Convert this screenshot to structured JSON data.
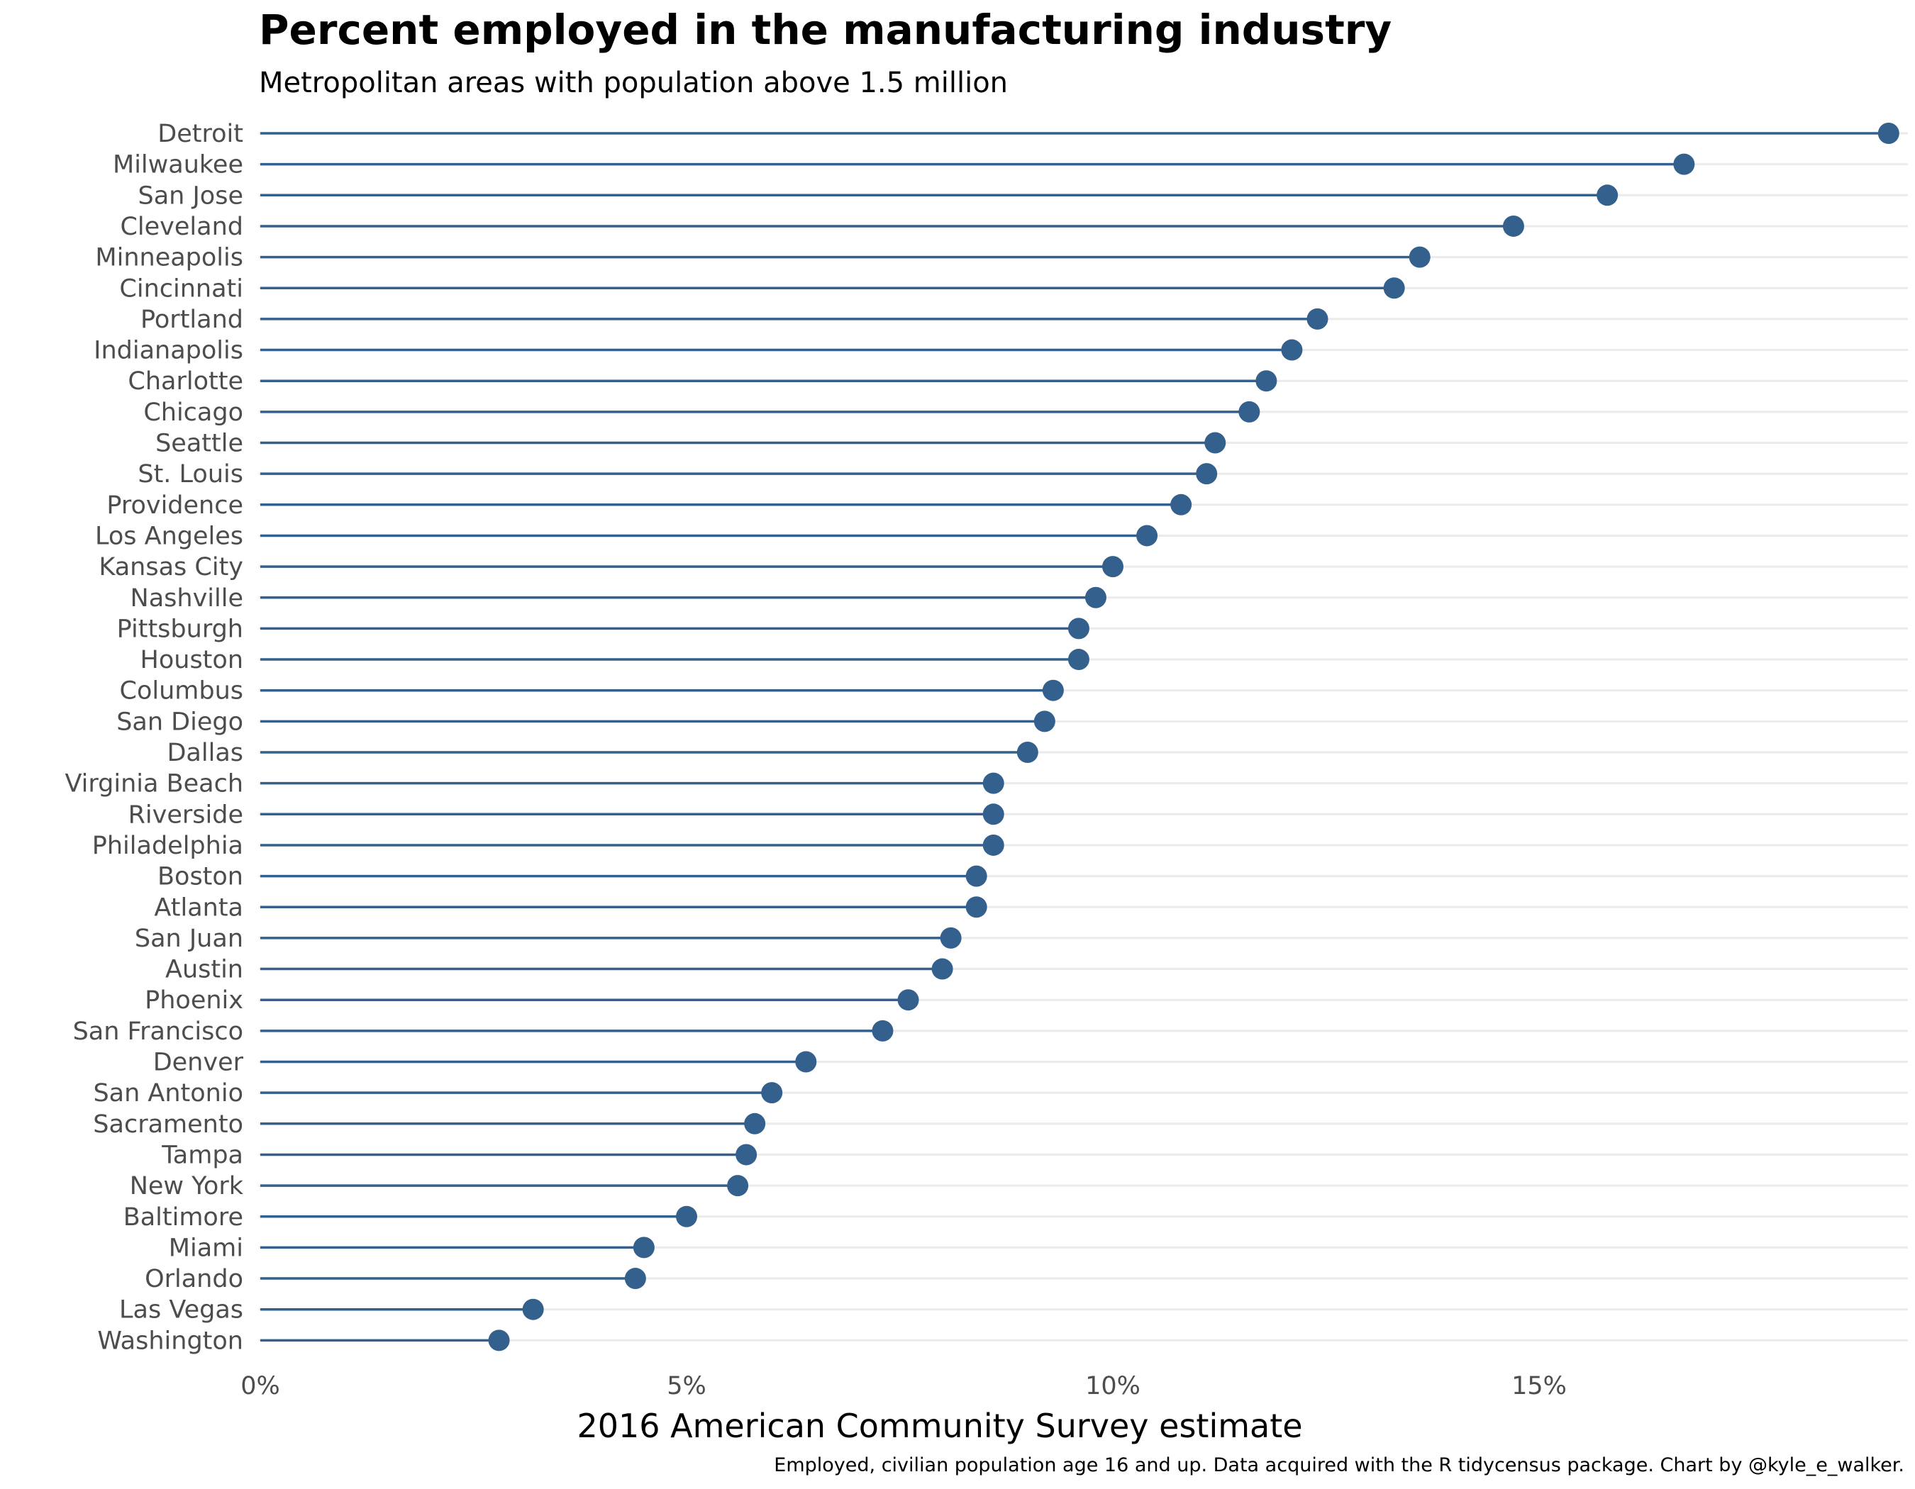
{
  "chart_data": {
    "type": "lollipop",
    "title": "Percent employed in the manufacturing industry",
    "subtitle": "Metropolitan areas with population above 1.5 million",
    "xlabel": "2016 American Community Survey estimate",
    "ylabel": "",
    "caption": "Employed, civilian population age 16 and up. Data acquired with the R tidycensus package. Chart by @kyle_e_walker.",
    "xlim": [
      0,
      19.5
    ],
    "xticks": [
      0,
      5,
      10,
      15
    ],
    "xtick_labels": [
      "0%",
      "5%",
      "10%",
      "15%"
    ],
    "grid": "horizontal",
    "categories": [
      "Detroit",
      "Milwaukee",
      "San Jose",
      "Cleveland",
      "Minneapolis",
      "Cincinnati",
      "Portland",
      "Indianapolis",
      "Charlotte",
      "Chicago",
      "Seattle",
      "St. Louis",
      "Providence",
      "Los Angeles",
      "Kansas City",
      "Nashville",
      "Pittsburgh",
      "Houston",
      "Columbus",
      "San Diego",
      "Dallas",
      "Virginia Beach",
      "Riverside",
      "Philadelphia",
      "Boston",
      "Atlanta",
      "San Juan",
      "Austin",
      "Phoenix",
      "San Francisco",
      "Denver",
      "San Antonio",
      "Sacramento",
      "Tampa",
      "New York",
      "Baltimore",
      "Miami",
      "Orlando",
      "Las Vegas",
      "Washington"
    ],
    "values": [
      19.1,
      16.7,
      15.8,
      14.7,
      13.6,
      13.3,
      12.4,
      12.1,
      11.8,
      11.6,
      11.2,
      11.1,
      10.8,
      10.4,
      10.0,
      9.8,
      9.6,
      9.6,
      9.3,
      9.2,
      9.0,
      8.6,
      8.6,
      8.6,
      8.4,
      8.4,
      8.1,
      8.0,
      7.6,
      7.3,
      6.4,
      6.0,
      5.8,
      5.7,
      5.6,
      5.0,
      4.5,
      4.4,
      3.2,
      2.8
    ],
    "color": "#33608c",
    "grid_color": "#ebebeb"
  }
}
